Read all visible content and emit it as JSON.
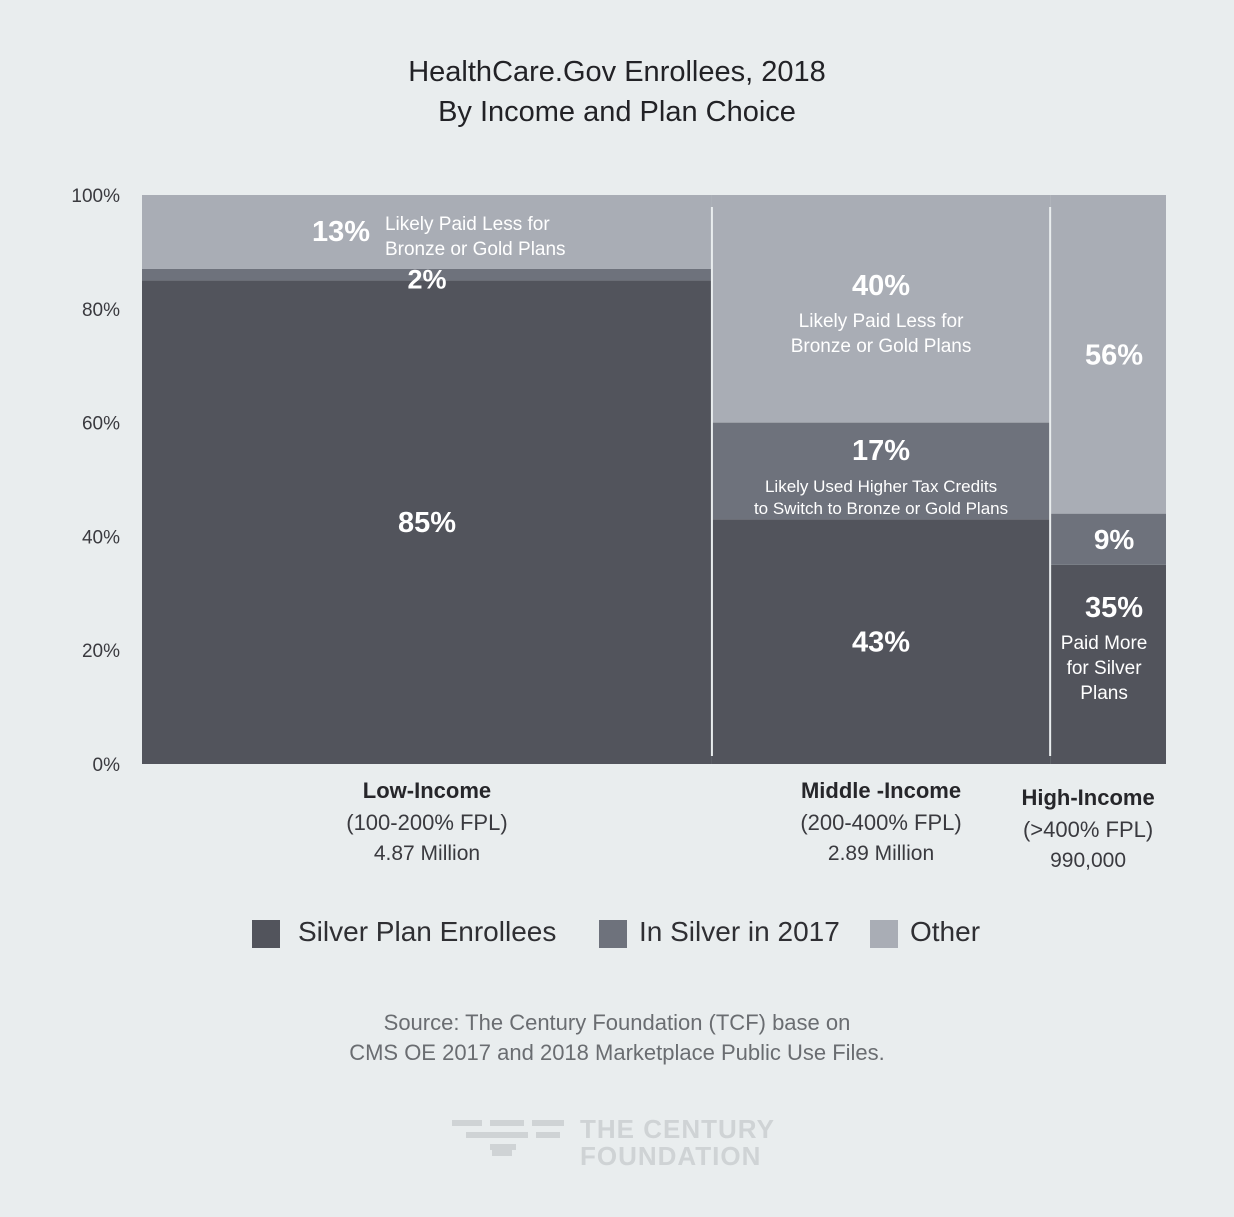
{
  "title": {
    "line1": "HealthCare.Gov Enrollees, 2018",
    "line2": "By Income and Plan Choice"
  },
  "chart_data": {
    "type": "bar",
    "subtype": "marimekko-stacked-100",
    "title": "HealthCare.Gov Enrollees, 2018 By Income and Plan Choice",
    "xlabel": "",
    "ylabel": "",
    "ylim": [
      0,
      100
    ],
    "y_ticks": [
      "0%",
      "20%",
      "40%",
      "60%",
      "80%",
      "100%"
    ],
    "grid": false,
    "legend_position": "bottom",
    "categories": [
      "Low-Income",
      "Middle -Income",
      "High-Income"
    ],
    "category_details": [
      {
        "name": "Low-Income",
        "range": "(100-200% FPL)",
        "enrollees": "4.87 Million",
        "enrollees_value": 4870000
      },
      {
        "name": "Middle -Income",
        "range": "(200-400% FPL)",
        "enrollees": "2.89 Million",
        "enrollees_value": 2890000
      },
      {
        "name": "High-Income",
        "range": "(>400% FPL)",
        "enrollees": "990,000",
        "enrollees_value": 990000
      }
    ],
    "series": [
      {
        "name": "Silver Plan Enrollees",
        "color": "#52545c",
        "values": [
          85,
          43,
          35
        ]
      },
      {
        "name": "In Silver in 2017",
        "color": "#6e727c",
        "values": [
          2,
          17,
          9
        ]
      },
      {
        "name": "Other",
        "color": "#a9adb5",
        "values": [
          13,
          40,
          56
        ]
      }
    ],
    "segment_labels": [
      [
        {
          "pct": "85%",
          "note": []
        },
        {
          "pct": "2%",
          "note": []
        },
        {
          "pct": "13%",
          "note": [
            "Likely Paid Less for",
            "Bronze or Gold Plans"
          ]
        }
      ],
      [
        {
          "pct": "43%",
          "note": []
        },
        {
          "pct": "17%",
          "note": [
            "Likely Used Higher Tax Credits",
            "to Switch to Bronze or Gold Plans"
          ]
        },
        {
          "pct": "40%",
          "note": [
            "Likely Paid Less for",
            "Bronze or Gold Plans"
          ]
        }
      ],
      [
        {
          "pct": "35%",
          "note": [
            "Paid More",
            "for Silver",
            "Plans"
          ]
        },
        {
          "pct": "9%",
          "note": []
        },
        {
          "pct": "56%",
          "note": []
        }
      ]
    ]
  },
  "legend": [
    {
      "label": "Silver Plan Enrollees",
      "color": "#52545c"
    },
    {
      "label": "In Silver in 2017",
      "color": "#6e727c"
    },
    {
      "label": "Other",
      "color": "#a9adb5"
    }
  ],
  "source": {
    "line1": "Source: The Century Foundation (TCF) base on",
    "line2": "CMS OE 2017 and 2018 Marketplace Public Use Files."
  },
  "logo": {
    "line1": "THE CENTURY",
    "line2": "FOUNDATION",
    "icon": "century-foundation-logo-icon"
  }
}
